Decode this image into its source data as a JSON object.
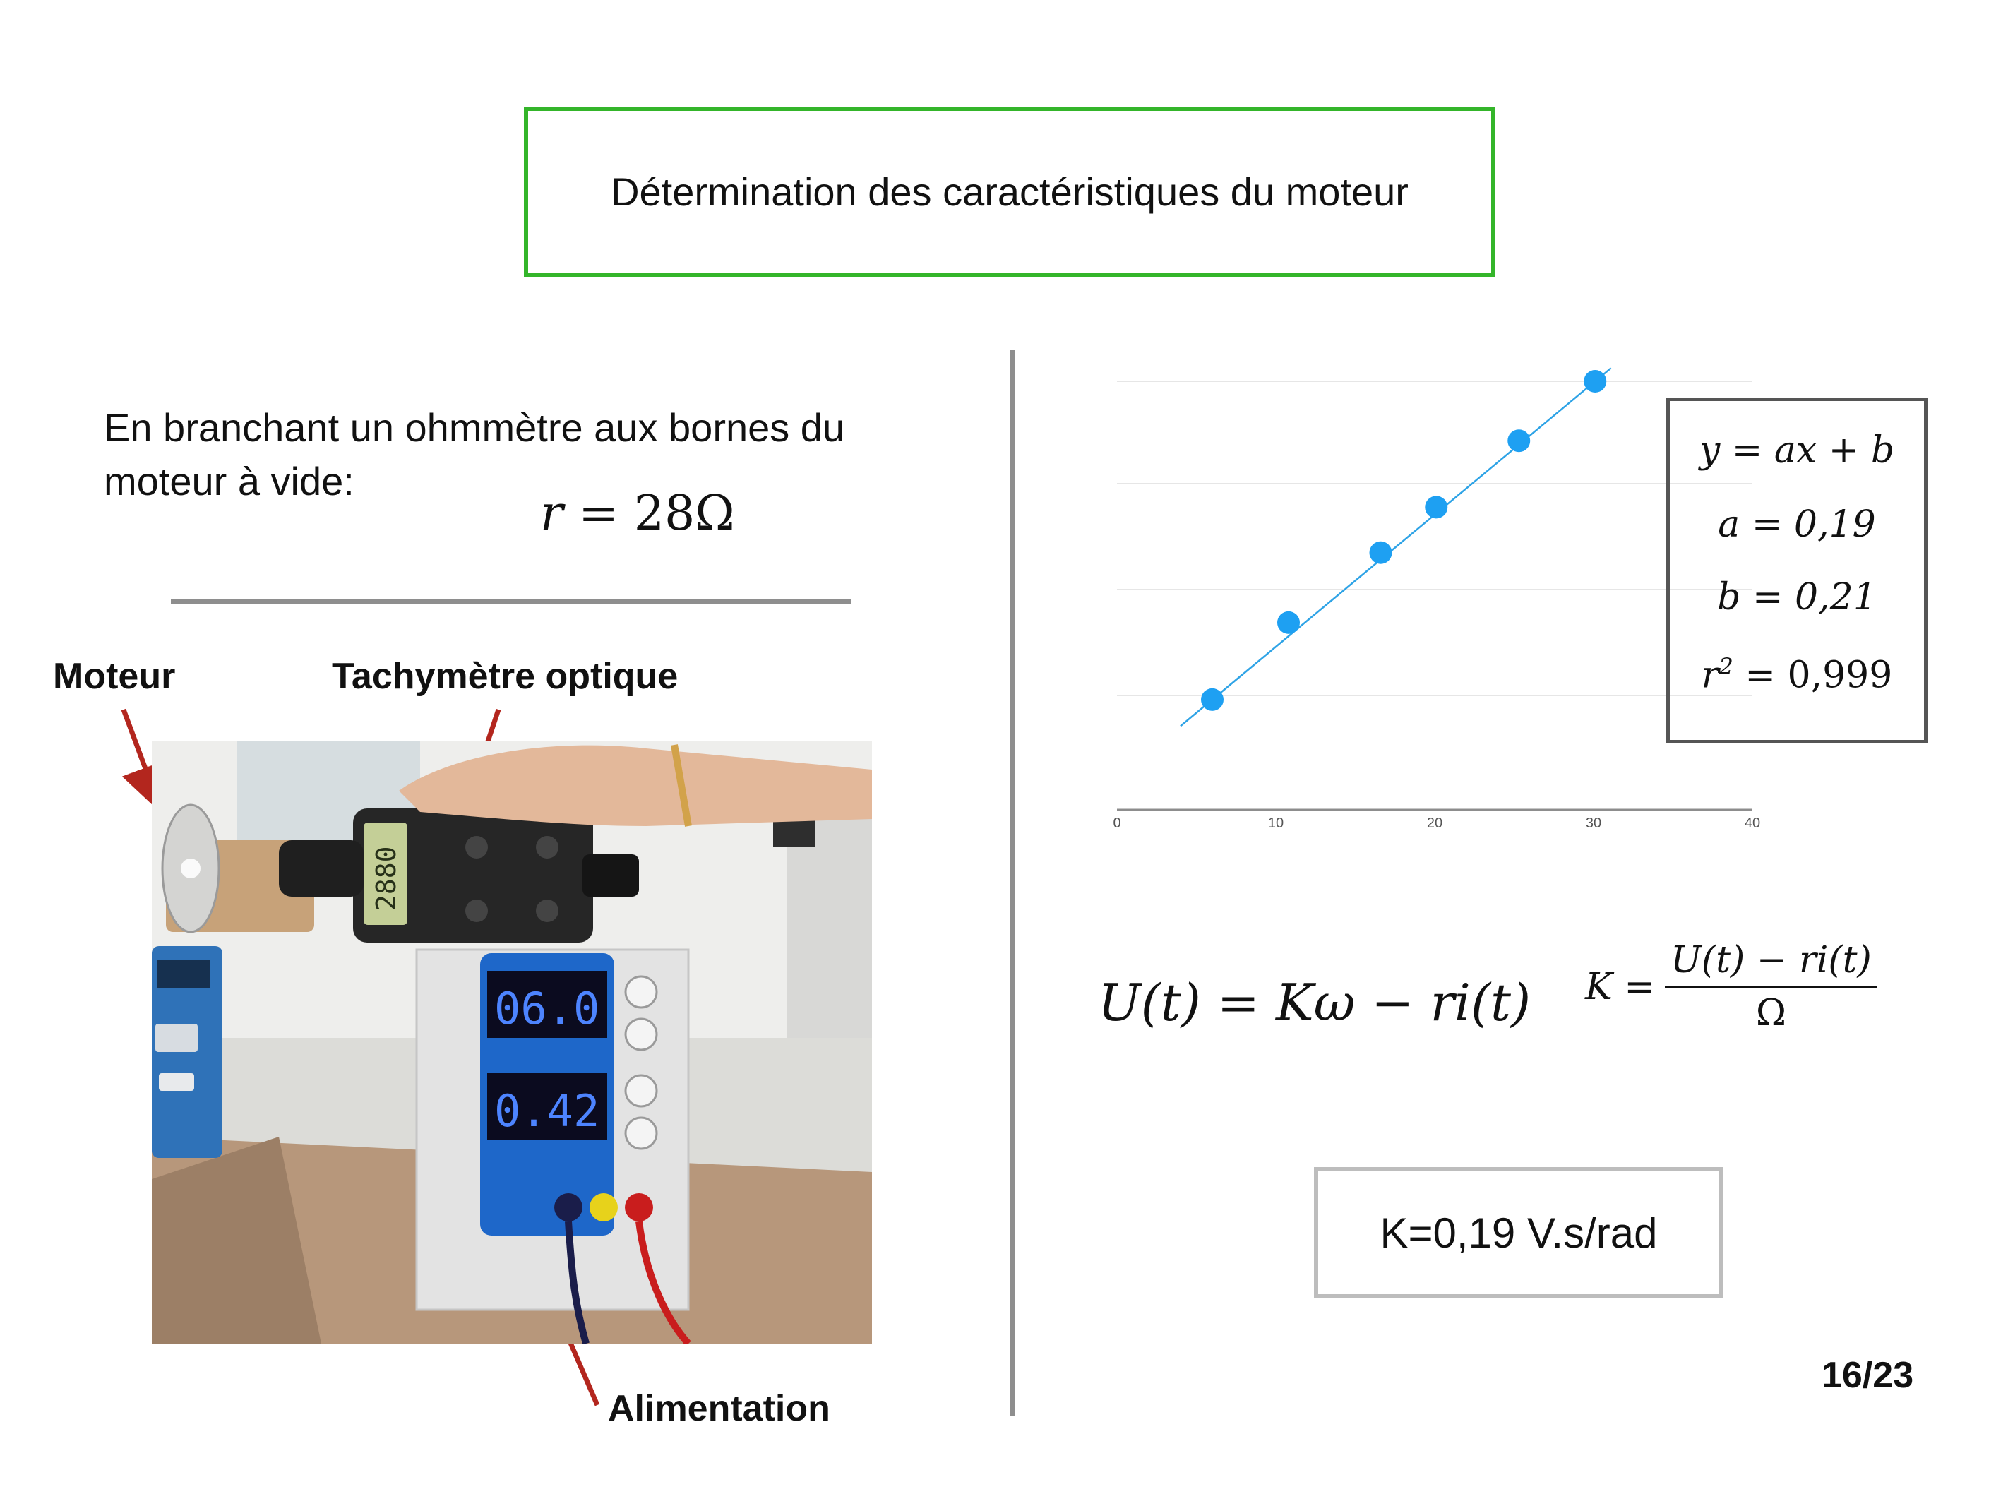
{
  "title": "Détermination des caractéristiques du moteur",
  "intro_text": "En branchant un ohmmètre aux bornes du moteur à vide:",
  "resistance": {
    "lhs": "r",
    "rhs": "28Ω"
  },
  "photo_labels": {
    "motor": "Moteur",
    "tachometer": "Tachymètre optique",
    "power_supply": "Alimentation"
  },
  "photo_readouts": {
    "tachometer": "2880",
    "voltage": "06.0",
    "current": "0.42"
  },
  "colors": {
    "title_border": "#34b52a",
    "points": "#1ea0f2",
    "arrows": "#b3261e",
    "result_border": "#bdbdbd"
  },
  "chart_data": {
    "type": "scatter",
    "x": [
      6,
      10.8,
      16.6,
      20.1,
      25.3,
      30.1
    ],
    "y": [
      1.25,
      2.35,
      3.35,
      4.0,
      4.95,
      5.8
    ],
    "xlim": [
      0,
      40
    ],
    "ylim": [
      0.3,
      5.8
    ],
    "xticks": [
      "0",
      "10",
      "20",
      "30",
      "40"
    ],
    "grid": true,
    "trendline": {
      "a": 0.19,
      "b": 0.21
    }
  },
  "regression": {
    "equation": "y = ax + b",
    "a": "a = 0,19",
    "b": "b = 0,21",
    "r2_label": "r",
    "r2_exp": "2",
    "r2_value": " = 0,999"
  },
  "equations": {
    "main": "U(t) = Kω − ri(t)",
    "k_lhs": "K =",
    "k_numerator": "U(t) − ri(t)",
    "k_denominator": "Ω"
  },
  "result": "K=0,19 V.s/rad",
  "page_number": "16/23"
}
